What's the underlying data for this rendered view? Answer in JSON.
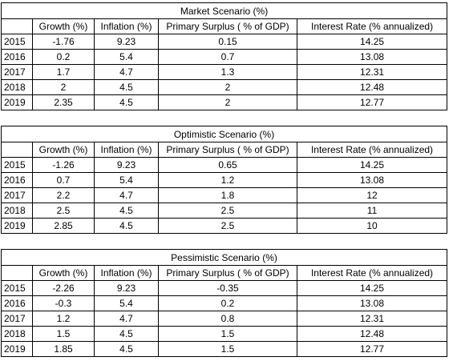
{
  "tables": [
    {
      "title": "Market Scenario (%)",
      "headers": [
        "",
        "Growth (%)",
        "Inflation (%)",
        "Primary Surplus ( % of GDP)",
        "Interest Rate (% annualized)"
      ],
      "rows": [
        [
          "2015",
          "-1.76",
          "9.23",
          "0.15",
          "14.25"
        ],
        [
          "2016",
          "0.2",
          "5.4",
          "0.7",
          "13.08"
        ],
        [
          "2017",
          "1.7",
          "4.7",
          "1.3",
          "12.31"
        ],
        [
          "2018",
          "2",
          "4.5",
          "2",
          "12.48"
        ],
        [
          "2019",
          "2.35",
          "4.5",
          "2",
          "12.77"
        ]
      ]
    },
    {
      "title": "Optimistic Scenario (%)",
      "headers": [
        "",
        "Growth (%)",
        "Inflation (%)",
        "Primary Surplus ( % of GDP)",
        "Interest Rate (% annualized)"
      ],
      "rows": [
        [
          "2015",
          "-1.26",
          "9.23",
          "0.65",
          "14.25"
        ],
        [
          "2016",
          "0.7",
          "5.4",
          "1.2",
          "13.08"
        ],
        [
          "2017",
          "2.2",
          "4.7",
          "1.8",
          "12"
        ],
        [
          "2018",
          "2.5",
          "4.5",
          "2.5",
          "11"
        ],
        [
          "2019",
          "2.85",
          "4.5",
          "2.5",
          "10"
        ]
      ]
    },
    {
      "title": "Pessimistic Scenario (%)",
      "headers": [
        "",
        "Growth (%)",
        "Inflation (%)",
        "Primary Surplus ( % of GDP)",
        "Interest Rate (% annualized)"
      ],
      "rows": [
        [
          "2015",
          "-2.26",
          "9.23",
          "-0.35",
          "14.25"
        ],
        [
          "2016",
          "-0.3",
          "5.4",
          "0.2",
          "13.08"
        ],
        [
          "2017",
          "1.2",
          "4.7",
          "0.8",
          "12.31"
        ],
        [
          "2018",
          "1.5",
          "4.5",
          "1.5",
          "12.48"
        ],
        [
          "2019",
          "1.85",
          "4.5",
          "1.5",
          "12.77"
        ]
      ]
    }
  ]
}
